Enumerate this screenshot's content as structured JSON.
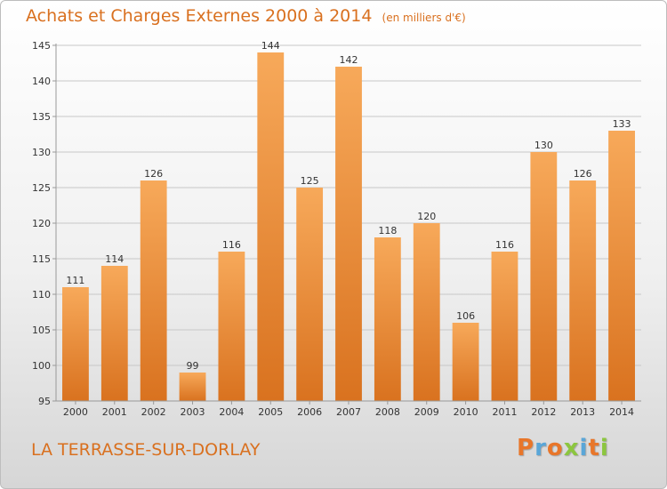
{
  "header": {
    "title": "Achats et Charges Externes 2000 à 2014",
    "unit": "(en milliers d'€)"
  },
  "footer": {
    "commune": "LA TERRASSE-SUR-DORLAY",
    "brand": "Proxiti",
    "brand_colors": [
      "#e8762a",
      "#5aa6d8",
      "#e8762a",
      "#8cc63f",
      "#5aa6d8",
      "#e8762a",
      "#8cc63f"
    ]
  },
  "colors": {
    "bar_light": "#f7a95a",
    "bar_dark": "#d9721f",
    "grid": "#c8c8c8",
    "axis": "#999999"
  },
  "chart_data": {
    "type": "bar",
    "title": "Achats et Charges Externes 2000 à 2014",
    "subtitle": "(en milliers d'€)",
    "xlabel": "",
    "ylabel": "",
    "categories": [
      "2000",
      "2001",
      "2002",
      "2003",
      "2004",
      "2005",
      "2006",
      "2007",
      "2008",
      "2009",
      "2010",
      "2011",
      "2012",
      "2013",
      "2014"
    ],
    "values": [
      111,
      114,
      126,
      99,
      116,
      144,
      125,
      142,
      118,
      120,
      106,
      116,
      130,
      126,
      133
    ],
    "ylim": [
      95,
      145
    ],
    "yticks": [
      95,
      100,
      105,
      110,
      115,
      120,
      125,
      130,
      135,
      140,
      145
    ],
    "grid": true,
    "data_labels": true
  }
}
